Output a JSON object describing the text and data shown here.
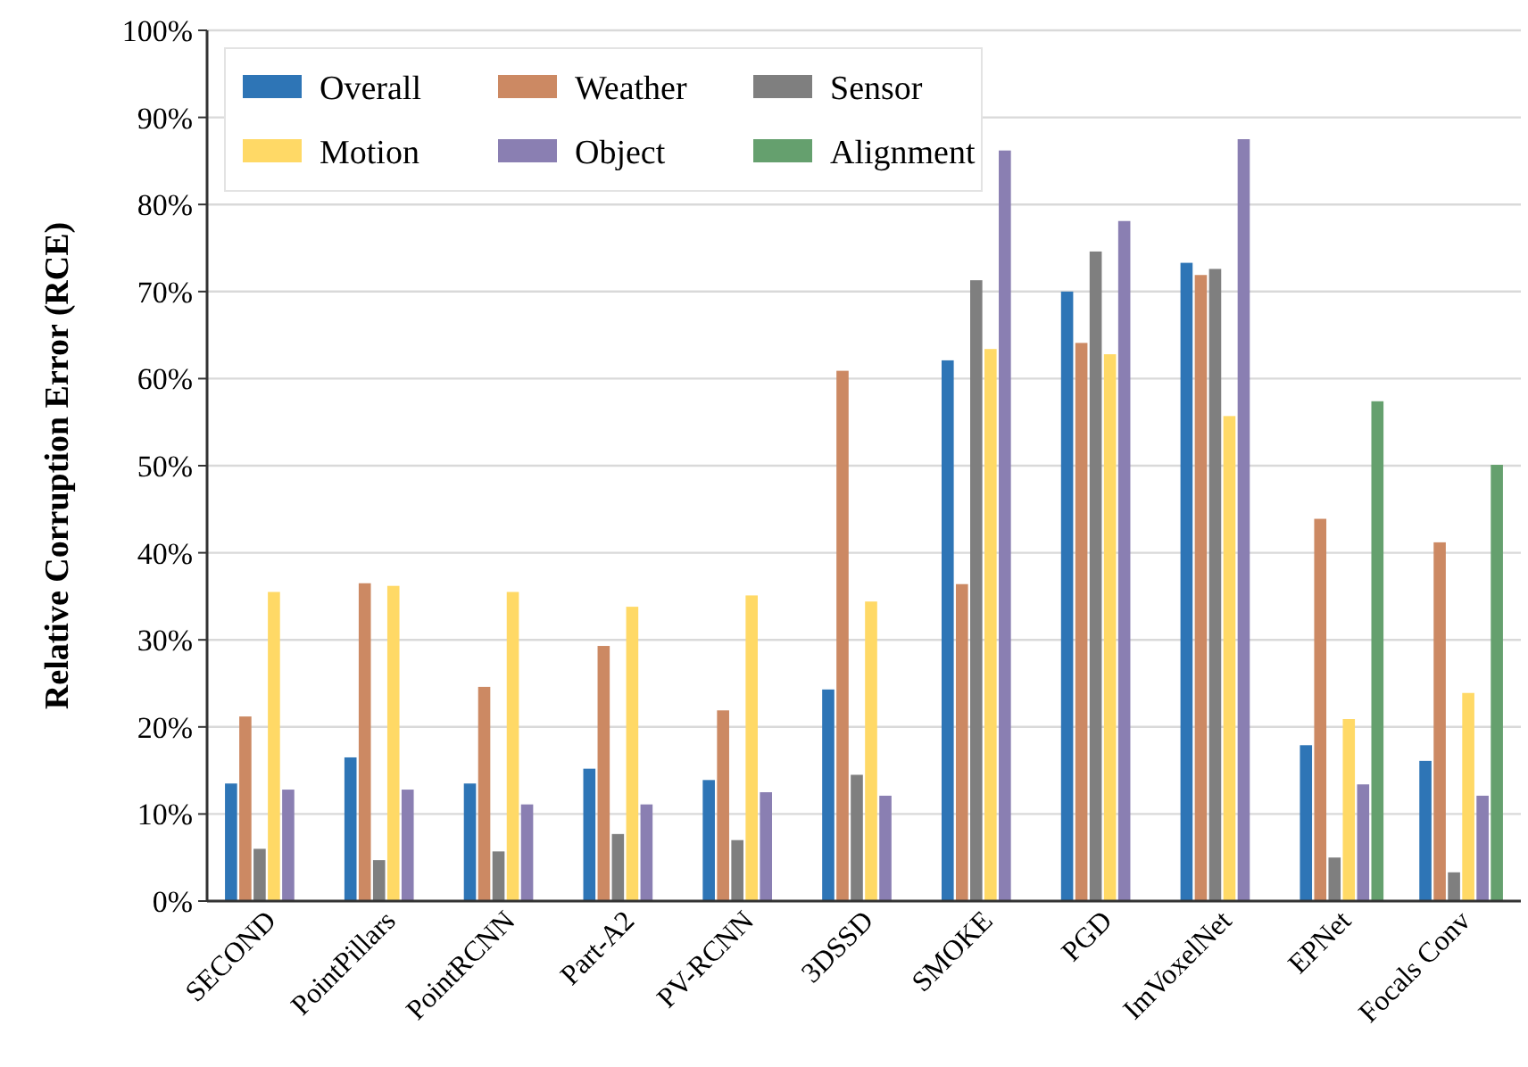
{
  "chart_data": {
    "type": "bar",
    "ylabel": "Relative Corruption Error (RCE)",
    "categories": [
      "SECOND",
      "PointPillars",
      "PointRCNN",
      "Part-A2",
      "PV-RCNN",
      "3DSSD",
      "SMOKE",
      "PGD",
      "ImVoxelNet",
      "EPNet",
      "Focals Conv"
    ],
    "series": [
      {
        "name": "Overall",
        "color": "#2e75b6",
        "values": [
          13.5,
          16.5,
          13.5,
          15.2,
          13.9,
          24.3,
          62.1,
          70.0,
          73.3,
          17.9,
          16.1
        ]
      },
      {
        "name": "Weather",
        "color": "#cc8963",
        "values": [
          21.2,
          36.5,
          24.6,
          29.3,
          21.9,
          60.9,
          36.4,
          64.1,
          71.9,
          43.9,
          41.2
        ]
      },
      {
        "name": "Sensor",
        "color": "#7f7f7f",
        "values": [
          6.0,
          4.7,
          5.7,
          7.7,
          7.0,
          14.5,
          71.3,
          74.6,
          72.6,
          5.0,
          3.3
        ]
      },
      {
        "name": "Motion",
        "color": "#ffd966",
        "values": [
          35.5,
          36.2,
          35.5,
          33.8,
          35.1,
          34.4,
          63.4,
          62.8,
          55.7,
          20.9,
          23.9
        ]
      },
      {
        "name": "Object",
        "color": "#8a7fb2",
        "values": [
          12.8,
          12.8,
          11.1,
          11.1,
          12.5,
          12.1,
          86.2,
          78.1,
          87.5,
          13.4,
          12.1
        ]
      },
      {
        "name": "Alignment",
        "color": "#65a06e",
        "values": [
          null,
          null,
          null,
          null,
          null,
          null,
          null,
          null,
          null,
          57.4,
          50.1
        ]
      }
    ],
    "ylim": [
      0,
      100
    ],
    "yticks": [
      {
        "value": 0,
        "label": "0%"
      },
      {
        "value": 10,
        "label": "10%"
      },
      {
        "value": 20,
        "label": "20%"
      },
      {
        "value": 30,
        "label": "30%"
      },
      {
        "value": 40,
        "label": "40%"
      },
      {
        "value": 50,
        "label": "50%"
      },
      {
        "value": 60,
        "label": "60%"
      },
      {
        "value": 70,
        "label": "70%"
      },
      {
        "value": 80,
        "label": "80%"
      },
      {
        "value": 90,
        "label": "90%"
      },
      {
        "value": 100,
        "label": "100%"
      }
    ],
    "grid": "y",
    "legend": "top left"
  }
}
